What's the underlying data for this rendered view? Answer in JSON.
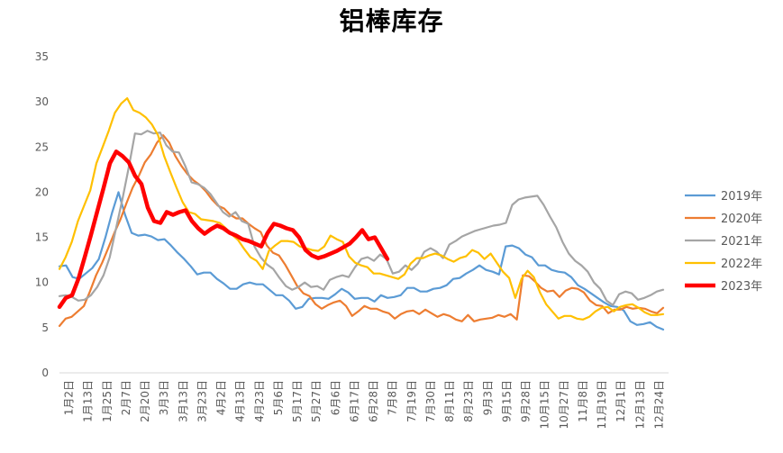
{
  "chart_data": {
    "type": "line",
    "title": "铝棒库存",
    "xlabel": "",
    "ylabel": "",
    "ylim": [
      0,
      35
    ],
    "y_ticks": [
      0,
      5,
      10,
      15,
      20,
      25,
      30,
      35
    ],
    "grid": false,
    "legend_position": "right",
    "x_ticks": [
      "1月2日",
      "1月13日",
      "1月25日",
      "2月7日",
      "2月20日",
      "3月3日",
      "3月13日",
      "3月23日",
      "4月2日",
      "4月13日",
      "4月23日",
      "5月6日",
      "5月17日",
      "5月27日",
      "6月6日",
      "6月17日",
      "6月28日",
      "7月8日",
      "7月19日",
      "7月30日",
      "8月11日",
      "8月23日",
      "9月3日",
      "9月15日",
      "9月28日",
      "10月15日",
      "10月27日",
      "11月8日",
      "11月19日",
      "12月1日",
      "12月13日",
      "12月24日"
    ],
    "series": [
      {
        "name": "2019年",
        "color": "#5B9BD5",
        "width": 2.2,
        "values": [
          11.8,
          11.9,
          10.6,
          10.4,
          11.0,
          11.6,
          12.6,
          15.0,
          17.7,
          20.0,
          17.5,
          15.5,
          15.2,
          15.3,
          15.1,
          14.7,
          14.8,
          14.1,
          13.3,
          12.6,
          11.8,
          10.9,
          11.1,
          11.1,
          10.4,
          9.9,
          9.3,
          9.3,
          9.8,
          10.0,
          9.8,
          9.8,
          9.2,
          8.6,
          8.6,
          8.0,
          7.1,
          7.3,
          8.2,
          8.3,
          8.3,
          8.2,
          8.7,
          9.3,
          8.9,
          8.2,
          8.3,
          8.3,
          7.9,
          8.6,
          8.3,
          8.4,
          8.6,
          9.4,
          9.4,
          9.0,
          9.0,
          9.3,
          9.4,
          9.7,
          10.4,
          10.5,
          11.0,
          11.4,
          11.9,
          11.4,
          11.2,
          10.9,
          14.0,
          14.1,
          13.8,
          13.1,
          12.8,
          11.9,
          11.9,
          11.4,
          11.2,
          11.1,
          10.6,
          9.7,
          9.3,
          8.8,
          8.3,
          7.8,
          7.4,
          7.3,
          6.9,
          5.7,
          5.3,
          5.4,
          5.6,
          5.1,
          4.8
        ]
      },
      {
        "name": "2020年",
        "color": "#ED7D31",
        "width": 2.2,
        "values": [
          5.2,
          6.0,
          6.2,
          6.8,
          7.4,
          9.0,
          10.8,
          12.2,
          13.8,
          15.5,
          17.0,
          18.8,
          20.5,
          21.8,
          23.3,
          24.2,
          25.5,
          26.3,
          25.5,
          24.0,
          22.9,
          22.0,
          21.3,
          20.8,
          20.1,
          19.2,
          18.5,
          18.2,
          17.5,
          17.1,
          17.1,
          16.5,
          16.0,
          15.6,
          14.1,
          13.3,
          13.0,
          12.0,
          10.8,
          9.6,
          8.8,
          8.5,
          7.6,
          7.1,
          7.5,
          7.8,
          8.0,
          7.4,
          6.3,
          6.8,
          7.4,
          7.1,
          7.1,
          6.8,
          6.6,
          6.0,
          6.5,
          6.8,
          6.9,
          6.5,
          7.0,
          6.6,
          6.2,
          6.5,
          6.3,
          5.9,
          5.7,
          6.4,
          5.7,
          5.9,
          6.0,
          6.1,
          6.4,
          6.2,
          6.5,
          5.9,
          10.8,
          10.7,
          10.1,
          9.4,
          9.0,
          9.1,
          8.4,
          9.1,
          9.4,
          9.3,
          8.9,
          8.0,
          7.5,
          7.4,
          6.6,
          7.0,
          7.0,
          7.3,
          7.1,
          7.2,
          7.1,
          6.8,
          6.6,
          7.2
        ]
      },
      {
        "name": "2021年",
        "color": "#A5A5A5",
        "width": 2.2,
        "values": [
          8.5,
          8.6,
          8.4,
          8.0,
          8.1,
          8.6,
          9.5,
          10.8,
          12.8,
          16.0,
          19.2,
          22.7,
          26.5,
          26.4,
          26.8,
          26.5,
          26.6,
          25.2,
          24.5,
          24.4,
          22.9,
          21.1,
          20.9,
          20.5,
          19.8,
          18.8,
          17.8,
          17.3,
          17.8,
          16.8,
          16.5,
          14.0,
          12.8,
          12.0,
          11.5,
          10.5,
          9.6,
          9.2,
          9.5,
          10.0,
          9.5,
          9.6,
          9.2,
          10.3,
          10.6,
          10.8,
          10.6,
          11.7,
          12.6,
          12.8,
          12.4,
          13.1,
          12.6,
          11.0,
          11.2,
          11.9,
          11.4,
          12.1,
          13.4,
          13.8,
          13.4,
          12.7,
          14.2,
          14.6,
          15.1,
          15.4,
          15.7,
          15.9,
          16.1,
          16.3,
          16.4,
          16.6,
          18.6,
          19.2,
          19.4,
          19.5,
          19.6,
          18.6,
          17.3,
          16.1,
          14.5,
          13.2,
          12.4,
          11.9,
          11.2,
          10.0,
          9.3,
          8.0,
          7.5,
          8.7,
          9.0,
          8.8,
          8.1,
          8.3,
          8.6,
          9.0,
          9.2
        ]
      },
      {
        "name": "2022年",
        "color": "#FFC000",
        "width": 2.2,
        "values": [
          11.5,
          12.8,
          14.5,
          16.8,
          18.5,
          20.2,
          23.2,
          25.0,
          26.8,
          28.8,
          29.8,
          30.4,
          29.1,
          28.8,
          28.3,
          27.5,
          26.3,
          24.0,
          22.2,
          20.5,
          18.9,
          17.8,
          17.6,
          17.0,
          16.9,
          16.8,
          16.6,
          16.0,
          15.3,
          14.7,
          13.7,
          12.8,
          12.4,
          11.5,
          13.5,
          14.1,
          14.6,
          14.6,
          14.5,
          14.0,
          13.8,
          13.6,
          13.5,
          14.0,
          15.2,
          14.8,
          14.5,
          12.9,
          12.2,
          11.9,
          11.7,
          11.0,
          11.0,
          10.8,
          10.6,
          10.4,
          10.9,
          12.1,
          12.7,
          12.7,
          13.0,
          13.2,
          13.0,
          12.6,
          12.3,
          12.7,
          12.9,
          13.6,
          13.3,
          12.6,
          13.2,
          12.2,
          11.2,
          10.5,
          8.3,
          10.4,
          11.3,
          10.6,
          8.9,
          7.6,
          6.8,
          6.0,
          6.3,
          6.3,
          6.0,
          5.9,
          6.2,
          6.8,
          7.2,
          7.3,
          6.8,
          7.3,
          7.5,
          7.6,
          7.2,
          6.7,
          6.4,
          6.4,
          6.5
        ]
      },
      {
        "name": "2023年",
        "color": "#FF0000",
        "width": 4.5,
        "values": [
          7.3,
          8.3,
          8.6,
          10.4,
          12.8,
          15.3,
          17.9,
          20.5,
          23.2,
          24.5,
          24.0,
          23.3,
          21.8,
          20.9,
          18.3,
          16.8,
          16.6,
          17.8,
          17.5,
          17.8,
          18.0,
          16.8,
          16.0,
          15.4,
          15.9,
          16.3,
          16.0,
          15.5,
          15.2,
          14.8,
          14.6,
          14.3,
          14.0,
          15.5,
          16.5,
          16.3,
          16.0,
          15.8,
          15.0,
          13.6,
          13.0,
          12.7,
          12.9,
          13.2,
          13.5,
          13.9,
          14.3,
          15.0,
          15.8,
          14.8,
          15.0,
          13.8,
          12.6
        ]
      }
    ]
  }
}
